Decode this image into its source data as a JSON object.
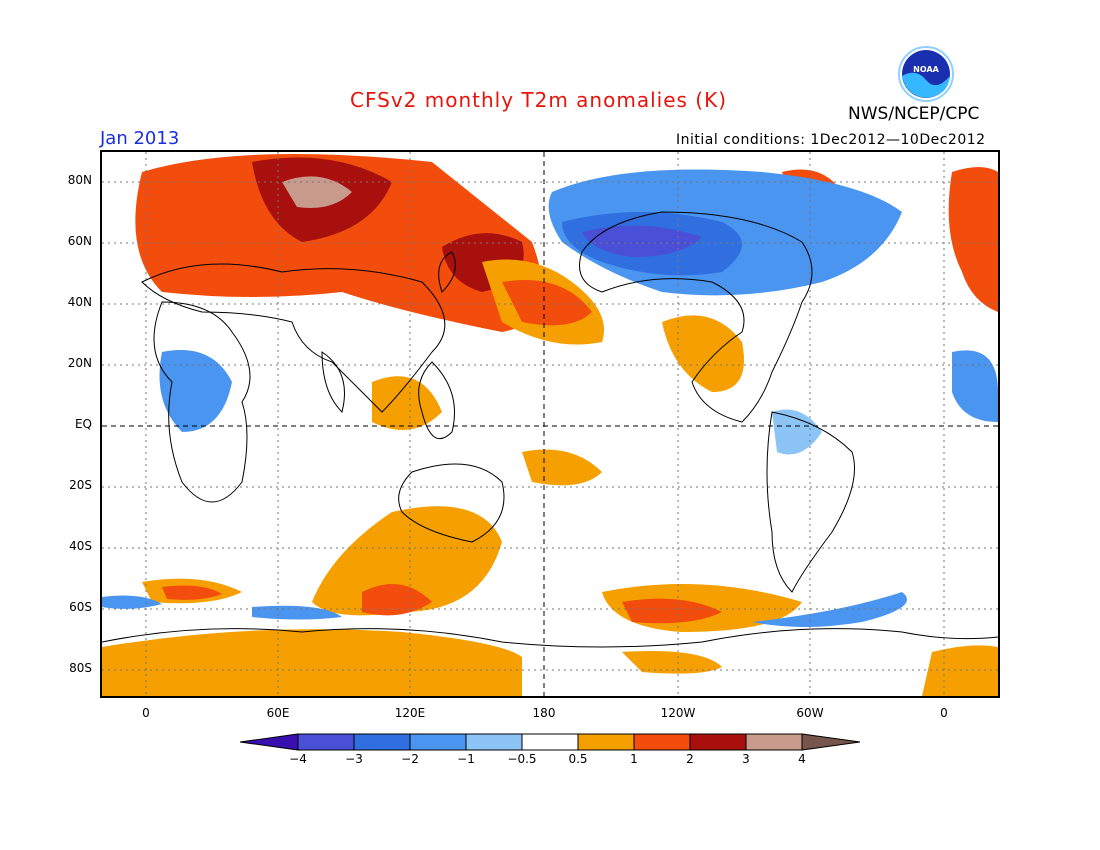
{
  "title": "CFSv2 monthly T2m anomalies (K)",
  "org": "NWS/NCEP/CPC",
  "month": "Jan 2013",
  "initial_conditions": "Initial conditions: 1Dec2012—10Dec2012",
  "logo_text": "NOAA",
  "lat_labels": [
    "80N",
    "60N",
    "40N",
    "20N",
    "EQ",
    "20S",
    "40S",
    "60S",
    "80S"
  ],
  "lon_labels": [
    "0",
    "60E",
    "120E",
    "180",
    "120W",
    "60W",
    "0"
  ],
  "colorbar": {
    "labels": [
      "−4",
      "−3",
      "−2",
      "−1",
      "−0.5",
      "0.5",
      "1",
      "2",
      "3",
      "4"
    ],
    "colors": [
      "#3a0fb0",
      "#4a4fd8",
      "#2f6fe0",
      "#4a95f0",
      "#8dc4f6",
      "#ffffff",
      "#f5a000",
      "#f24d0c",
      "#a8100e",
      "#c79a8c",
      "#76564c"
    ]
  }
}
